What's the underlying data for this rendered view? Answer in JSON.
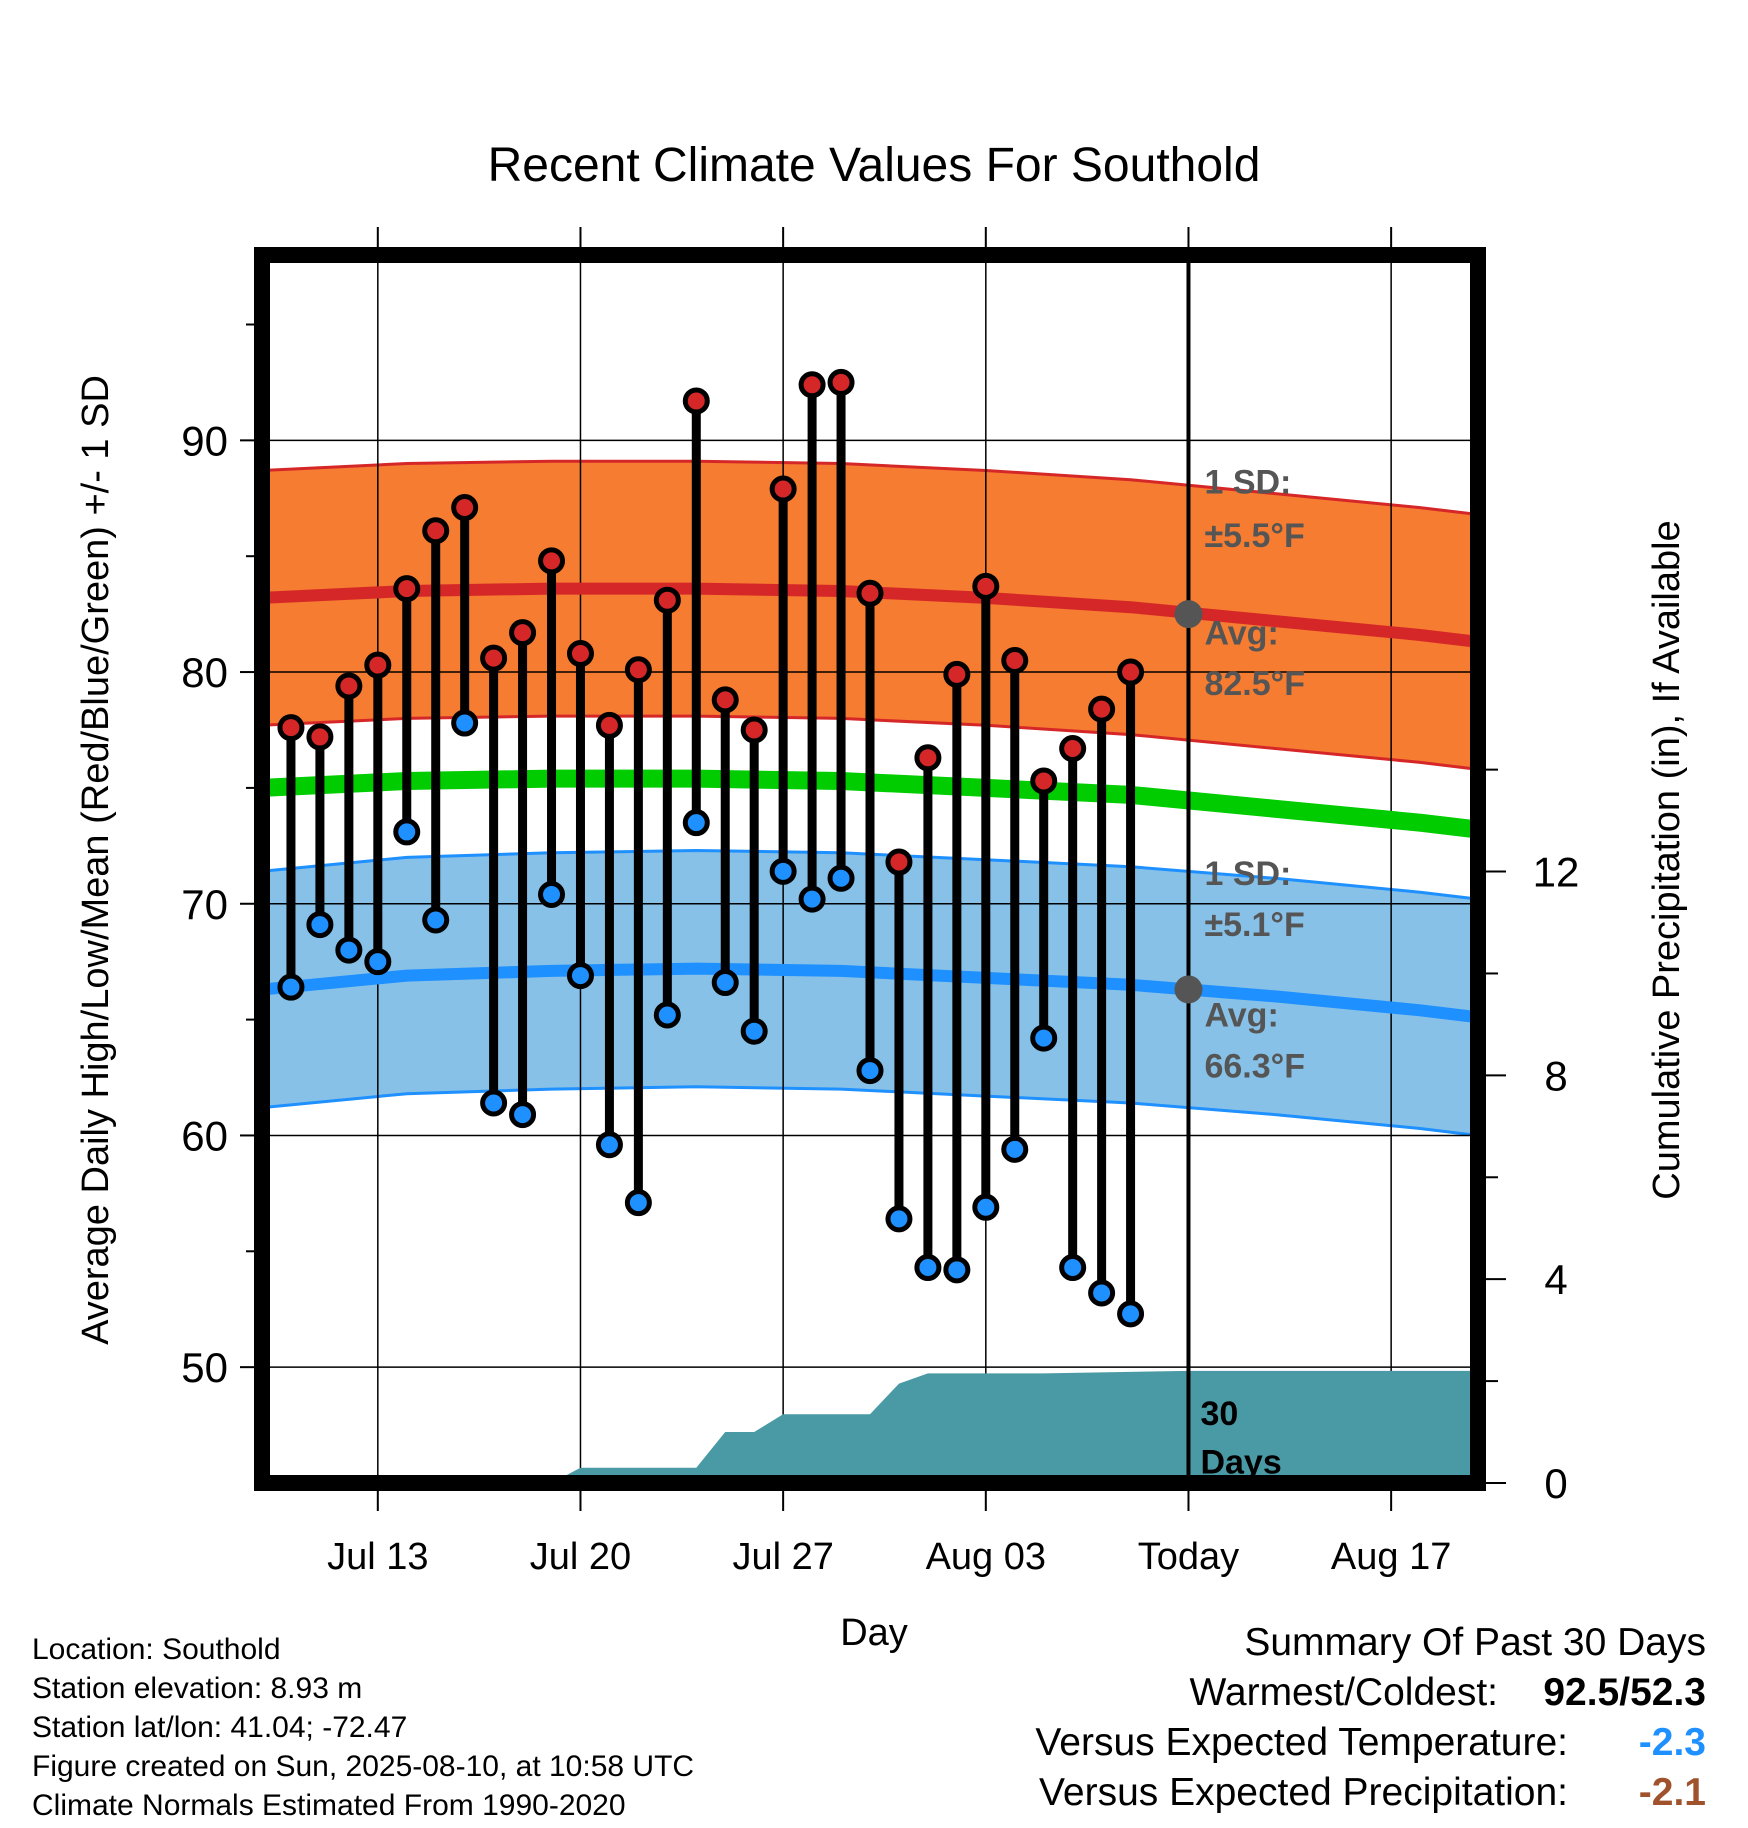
{
  "title": "Recent Climate Values For Southold",
  "chart_data": {
    "type": "line",
    "title": "Recent Climate Values For Southold",
    "xlabel": "Day",
    "ylabel": "Average Daily High/Low/Mean (Red/Blue/Green) +/- 1 SD",
    "y2label": "Cumulative Precipitation (in), If Available",
    "ylim": [
      45,
      98
    ],
    "y2lim": [
      0,
      24.1
    ],
    "yticks": [
      50,
      60,
      70,
      80,
      90
    ],
    "y2ticks": [
      0,
      4,
      8,
      12
    ],
    "x_start_date": "2025-07-09",
    "x_end_date": "2025-08-20",
    "xticks": [
      {
        "date": "2025-07-13",
        "label": "Jul 13"
      },
      {
        "date": "2025-07-20",
        "label": "Jul 20"
      },
      {
        "date": "2025-07-27",
        "label": "Jul 27"
      },
      {
        "date": "2025-08-03",
        "label": "Aug 03"
      },
      {
        "date": "2025-08-10",
        "label": "Today"
      },
      {
        "date": "2025-08-17",
        "label": "Aug 17"
      }
    ],
    "today": "2025-08-10",
    "grid": true,
    "series": [
      {
        "name": "Daily High",
        "color": "#d62728",
        "dates": [
          "2025-07-10",
          "2025-07-11",
          "2025-07-12",
          "2025-07-13",
          "2025-07-14",
          "2025-07-15",
          "2025-07-16",
          "2025-07-17",
          "2025-07-18",
          "2025-07-19",
          "2025-07-20",
          "2025-07-21",
          "2025-07-22",
          "2025-07-23",
          "2025-07-24",
          "2025-07-25",
          "2025-07-26",
          "2025-07-27",
          "2025-07-28",
          "2025-07-29",
          "2025-07-30",
          "2025-07-31",
          "2025-08-01",
          "2025-08-02",
          "2025-08-03",
          "2025-08-04",
          "2025-08-05",
          "2025-08-06",
          "2025-08-07",
          "2025-08-08",
          "2025-08-09"
        ],
        "values": [
          77.6,
          77.2,
          79.4,
          80.3,
          83.6,
          86.1,
          87.1,
          80.6,
          81.7,
          84.8,
          80.8,
          77.7,
          80.1,
          83.1,
          91.7,
          78.8,
          77.5,
          87.9,
          92.4,
          92.5,
          83.4,
          71.8,
          76.3,
          79.9,
          83.7,
          80.5,
          75.3,
          76.7,
          78.4,
          80.0,
          null
        ]
      },
      {
        "name": "Daily Low",
        "color": "#1e90ff",
        "dates": [
          "2025-07-10",
          "2025-07-11",
          "2025-07-12",
          "2025-07-13",
          "2025-07-14",
          "2025-07-15",
          "2025-07-16",
          "2025-07-17",
          "2025-07-18",
          "2025-07-19",
          "2025-07-20",
          "2025-07-21",
          "2025-07-22",
          "2025-07-23",
          "2025-07-24",
          "2025-07-25",
          "2025-07-26",
          "2025-07-27",
          "2025-07-28",
          "2025-07-29",
          "2025-07-30",
          "2025-07-31",
          "2025-08-01",
          "2025-08-02",
          "2025-08-03",
          "2025-08-04",
          "2025-08-05",
          "2025-08-06",
          "2025-08-07",
          "2025-08-08",
          "2025-08-09"
        ],
        "values": [
          66.4,
          69.1,
          68.0,
          67.5,
          73.1,
          69.3,
          77.8,
          61.4,
          60.9,
          70.4,
          66.9,
          59.6,
          57.1,
          65.2,
          73.5,
          66.6,
          64.5,
          71.4,
          70.2,
          71.1,
          62.8,
          56.4,
          54.3,
          54.2,
          56.9,
          59.4,
          64.2,
          54.3,
          53.2,
          52.3,
          null
        ]
      }
    ],
    "normals": {
      "dates": [
        "2025-07-09",
        "2025-07-14",
        "2025-07-19",
        "2025-07-24",
        "2025-07-29",
        "2025-08-03",
        "2025-08-08",
        "2025-08-13",
        "2025-08-18",
        "2025-08-20"
      ],
      "high_avg": [
        83.2,
        83.5,
        83.6,
        83.6,
        83.5,
        83.2,
        82.8,
        82.2,
        81.6,
        81.3
      ],
      "low_avg": [
        66.3,
        66.9,
        67.1,
        67.2,
        67.1,
        66.8,
        66.5,
        66.0,
        65.4,
        65.1
      ],
      "mean_avg": [
        75.0,
        75.3,
        75.4,
        75.4,
        75.3,
        75.0,
        74.7,
        74.1,
        73.5,
        73.2
      ],
      "high_sd": 5.5,
      "low_sd": 5.1
    },
    "precip_cumulative": {
      "dates": [
        "2025-07-09",
        "2025-07-18",
        "2025-07-19",
        "2025-07-20",
        "2025-07-24",
        "2025-07-25",
        "2025-07-26",
        "2025-07-27",
        "2025-07-30",
        "2025-07-31",
        "2025-08-01",
        "2025-08-05",
        "2025-08-10",
        "2025-08-20"
      ],
      "values": [
        0,
        0,
        0,
        0.3,
        0.3,
        1.0,
        1.0,
        1.35,
        1.35,
        1.95,
        2.15,
        2.15,
        2.2,
        2.2
      ]
    },
    "annotations": {
      "high_sd_label": "1 SD:",
      "high_sd_value": "±5.5°F",
      "high_avg_label": "Avg:",
      "high_avg_value": "82.5°F",
      "low_sd_label": "1 SD:",
      "low_sd_value": "±5.1°F",
      "low_avg_label": "Avg:",
      "low_avg_value": "66.3°F",
      "today_high_avg": 82.5,
      "today_low_avg": 66.3,
      "precip_window_label_1": "30",
      "precip_window_label_2": "Days"
    },
    "colors": {
      "high_band": "#f57c30",
      "high_band_edge": "#d62728",
      "high_line": "#d62728",
      "low_band": "#87c1e8",
      "low_band_edge": "#1e90ff",
      "low_line": "#1e90ff",
      "mean_line": "#00cc00",
      "precip_fill": "#4a9aa5",
      "today_marker": "#555555",
      "annotation_text": "#555555"
    }
  },
  "footer": {
    "location": "Location: Southold",
    "elevation": "Station elevation: 8.93 m",
    "latlon": "Station lat/lon: 41.04; -72.47",
    "created": "Figure created on Sun, 2025-08-10, at 10:58 UTC",
    "normals": "Climate Normals Estimated From 1990-2020"
  },
  "summary": {
    "heading": "Summary Of Past 30 Days",
    "warmest_coldest_label": "Warmest/Coldest:",
    "warmest_coldest_value": "92.5/52.3",
    "temp_label": "Versus Expected Temperature:",
    "temp_value": "-2.3",
    "temp_color": "#1e90ff",
    "precip_label": "Versus Expected Precipitation:",
    "precip_value": "-2.1",
    "precip_color": "#a0522d"
  }
}
